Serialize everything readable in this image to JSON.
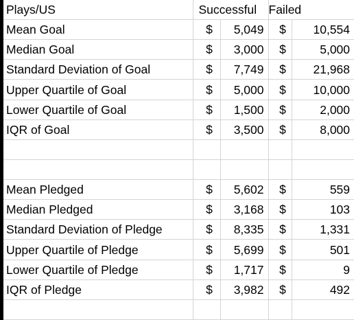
{
  "header": {
    "label": "Plays/US",
    "successful": "Successful",
    "failed": "Failed"
  },
  "goal_rows": [
    {
      "label": "Mean Goal",
      "s_sym": "$",
      "s_val": "5,049",
      "f_sym": "$",
      "f_val": "10,554"
    },
    {
      "label": "Median Goal",
      "s_sym": "$",
      "s_val": "3,000",
      "f_sym": "$",
      "f_val": "5,000"
    },
    {
      "label": "Standard Deviation of Goal",
      "s_sym": "$",
      "s_val": "7,749",
      "f_sym": "$",
      "f_val": "21,968"
    },
    {
      "label": "Upper Quartile of Goal",
      "s_sym": "$",
      "s_val": "5,000",
      "f_sym": "$",
      "f_val": "10,000"
    },
    {
      "label": "Lower Quartile of Goal",
      "s_sym": "$",
      "s_val": "1,500",
      "f_sym": "$",
      "f_val": "2,000"
    },
    {
      "label": "IQR of Goal",
      "s_sym": "$",
      "s_val": "3,500",
      "f_sym": "$",
      "f_val": "8,000"
    }
  ],
  "pledge_rows": [
    {
      "label": "Mean Pledged",
      "s_sym": "$",
      "s_val": "5,602",
      "f_sym": "$",
      "f_val": "559"
    },
    {
      "label": "Median Pledged",
      "s_sym": "$",
      "s_val": "3,168",
      "f_sym": "$",
      "f_val": "103"
    },
    {
      "label": "Standard Deviation of Pledge",
      "s_sym": "$",
      "s_val": "8,335",
      "f_sym": "$",
      "f_val": "1,331"
    },
    {
      "label": "Upper Quartile of Pledge",
      "s_sym": "$",
      "s_val": "5,699",
      "f_sym": "$",
      "f_val": "501"
    },
    {
      "label": "Lower Quartile of Pledge",
      "s_sym": "$",
      "s_val": "1,717",
      "f_sym": "$",
      "f_val": "9"
    },
    {
      "label": "IQR of Pledge",
      "s_sym": "$",
      "s_val": "3,982",
      "f_sym": "$",
      "f_val": "492"
    }
  ],
  "colors": {
    "gridline": "#d4d4d4",
    "text": "#000000",
    "background": "#ffffff"
  }
}
